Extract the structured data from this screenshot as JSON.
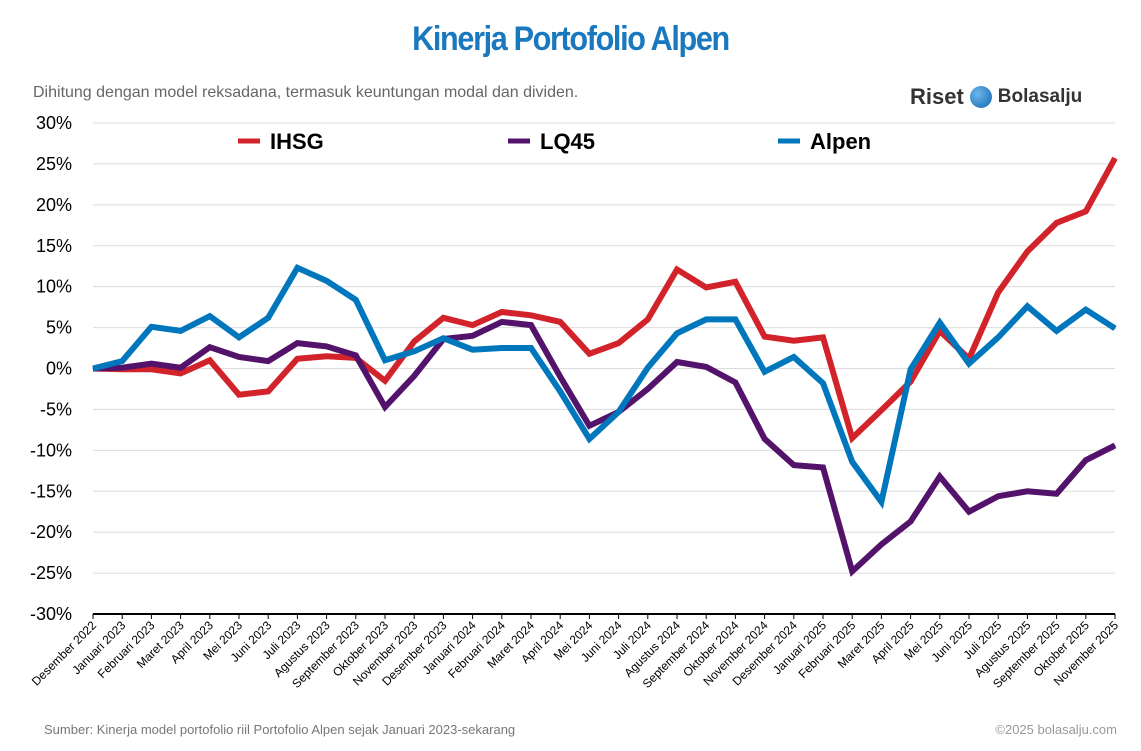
{
  "header": {
    "title": "Kinerja Portofolio Alpen",
    "subtitle": "Dihitung dengan model reksadana, termasuk keuntungan modal dan dividen.",
    "logo_text_1": "Riset",
    "logo_text_2": "Bolasalju"
  },
  "footer": {
    "source": "Sumber: Kinerja model portofolio riil Portofolio Alpen sejak Januari 2023-sekarang",
    "copyright": "©2025 bolasalju.com"
  },
  "chart_data": {
    "type": "line",
    "title": "Kinerja Portofolio Alpen",
    "ylim": [
      -30,
      30
    ],
    "yticks": [
      30,
      25,
      20,
      15,
      10,
      5,
      0,
      -5,
      -10,
      -15,
      -20,
      -25,
      -30
    ],
    "ytick_labels": [
      "30%",
      "25%",
      "20%",
      "15%",
      "10%",
      "5%",
      "0%",
      "-5%",
      "-10%",
      "-15%",
      "-20%",
      "-25%",
      "-30%"
    ],
    "grid": true,
    "legend_position": "top",
    "categories": [
      "Desember 2022",
      "Januari 2023",
      "Februari 2023",
      "Maret 2023",
      "April 2023",
      "Mei 2023",
      "Juni 2023",
      "Juli 2023",
      "Agustus 2023",
      "September 2023",
      "Oktober 2023",
      "November 2023",
      "Desember 2023",
      "Januari 2024",
      "Februari 2024",
      "Maret 2024",
      "April 2024",
      "Mei 2024",
      "Juni 2024",
      "Juli 2024",
      "Agustus 2024",
      "September 2024",
      "Oktober 2024",
      "November 2024",
      "Desember 2024",
      "Januari 2025",
      "Februari 2025",
      "Maret 2025",
      "April 2025",
      "Mei 2025",
      "Juni 2025",
      "Juli 2025",
      "Agustus 2025",
      "September 2025",
      "Oktober 2025",
      "November 2025"
    ],
    "series": [
      {
        "name": "IHSG",
        "color": "#d2232a",
        "values": [
          0,
          -0.1,
          -0.1,
          -0.6,
          1.0,
          -3.2,
          -2.8,
          1.2,
          1.5,
          1.3,
          -1.5,
          3.3,
          6.2,
          5.3,
          6.9,
          6.5,
          5.7,
          1.8,
          3.1,
          6.0,
          12.1,
          9.9,
          10.6,
          3.9,
          3.4,
          3.8,
          -8.5,
          -5.1,
          -1.6,
          4.6,
          1.2,
          9.3,
          14.3,
          17.8,
          19.2,
          25.7
        ]
      },
      {
        "name": "LQ45",
        "color": "#54136b",
        "values": [
          0,
          0.1,
          0.6,
          0.1,
          2.6,
          1.4,
          0.9,
          3.1,
          2.7,
          1.6,
          -4.7,
          -0.9,
          3.6,
          4.0,
          5.7,
          5.3,
          -1.0,
          -7.0,
          -5.3,
          -2.5,
          0.8,
          0.2,
          -1.7,
          -8.6,
          -11.8,
          -12.1,
          -24.8,
          -21.5,
          -18.7,
          -13.2,
          -17.5,
          -15.6,
          -15.0,
          -15.3,
          -11.2,
          -9.4
        ]
      },
      {
        "name": "Alpen",
        "color": "#0077bd",
        "values": [
          0,
          0.9,
          5.1,
          4.6,
          6.4,
          3.8,
          6.2,
          12.3,
          10.7,
          8.4,
          1.0,
          2.1,
          3.7,
          2.3,
          2.5,
          2.5,
          -2.8,
          -8.6,
          -5.3,
          0.1,
          4.3,
          6.0,
          6.0,
          -0.4,
          1.4,
          -1.8,
          -11.4,
          -16.3,
          -0.1,
          5.6,
          0.6,
          3.8,
          7.6,
          4.6,
          7.2,
          4.9
        ]
      }
    ]
  }
}
